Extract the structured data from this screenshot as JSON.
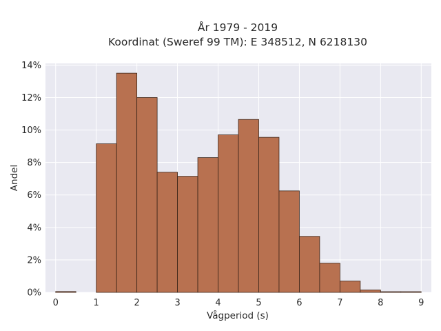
{
  "chart_data": {
    "type": "bar",
    "title": "År 1979 - 2019",
    "subtitle": "Koordinat (Sweref 99 TM): E 348512, N 6218130",
    "xlabel": "Vågperiod (s)",
    "ylabel": "Andel",
    "bin_width": 0.5,
    "bins": [
      {
        "start": 0.0,
        "end": 0.5,
        "value": 0.05
      },
      {
        "start": 0.5,
        "end": 1.0,
        "value": 0.0
      },
      {
        "start": 1.0,
        "end": 1.5,
        "value": 9.15
      },
      {
        "start": 1.5,
        "end": 2.0,
        "value": 13.5
      },
      {
        "start": 2.0,
        "end": 2.5,
        "value": 12.0
      },
      {
        "start": 2.5,
        "end": 3.0,
        "value": 7.4
      },
      {
        "start": 3.0,
        "end": 3.5,
        "value": 7.15
      },
      {
        "start": 3.5,
        "end": 4.0,
        "value": 8.3
      },
      {
        "start": 4.0,
        "end": 4.5,
        "value": 9.7
      },
      {
        "start": 4.5,
        "end": 5.0,
        "value": 10.65
      },
      {
        "start": 5.0,
        "end": 5.5,
        "value": 9.55
      },
      {
        "start": 5.5,
        "end": 6.0,
        "value": 6.25
      },
      {
        "start": 6.0,
        "end": 6.5,
        "value": 3.45
      },
      {
        "start": 6.5,
        "end": 7.0,
        "value": 1.8
      },
      {
        "start": 7.0,
        "end": 7.5,
        "value": 0.7
      },
      {
        "start": 7.5,
        "end": 8.0,
        "value": 0.15
      },
      {
        "start": 8.0,
        "end": 8.5,
        "value": 0.02
      },
      {
        "start": 8.5,
        "end": 9.0,
        "value": 0.01
      }
    ],
    "xlim": [
      -0.25,
      9.25
    ],
    "ylim": [
      0,
      14.1
    ],
    "xticks": [
      0,
      1,
      2,
      3,
      4,
      5,
      6,
      7,
      8,
      9
    ],
    "xtick_labels": [
      "0",
      "1",
      "2",
      "3",
      "4",
      "5",
      "6",
      "7",
      "8",
      "9"
    ],
    "yticks": [
      0,
      2,
      4,
      6,
      8,
      10,
      12,
      14
    ],
    "ytick_labels": [
      "0%",
      "2%",
      "4%",
      "6%",
      "8%",
      "10%",
      "12%",
      "14%"
    ],
    "grid": true,
    "colors": {
      "bar_fill": "#b87150",
      "bar_edge": "#3a2418",
      "plot_background": "#e9e9f1",
      "grid": "#ffffff"
    }
  }
}
